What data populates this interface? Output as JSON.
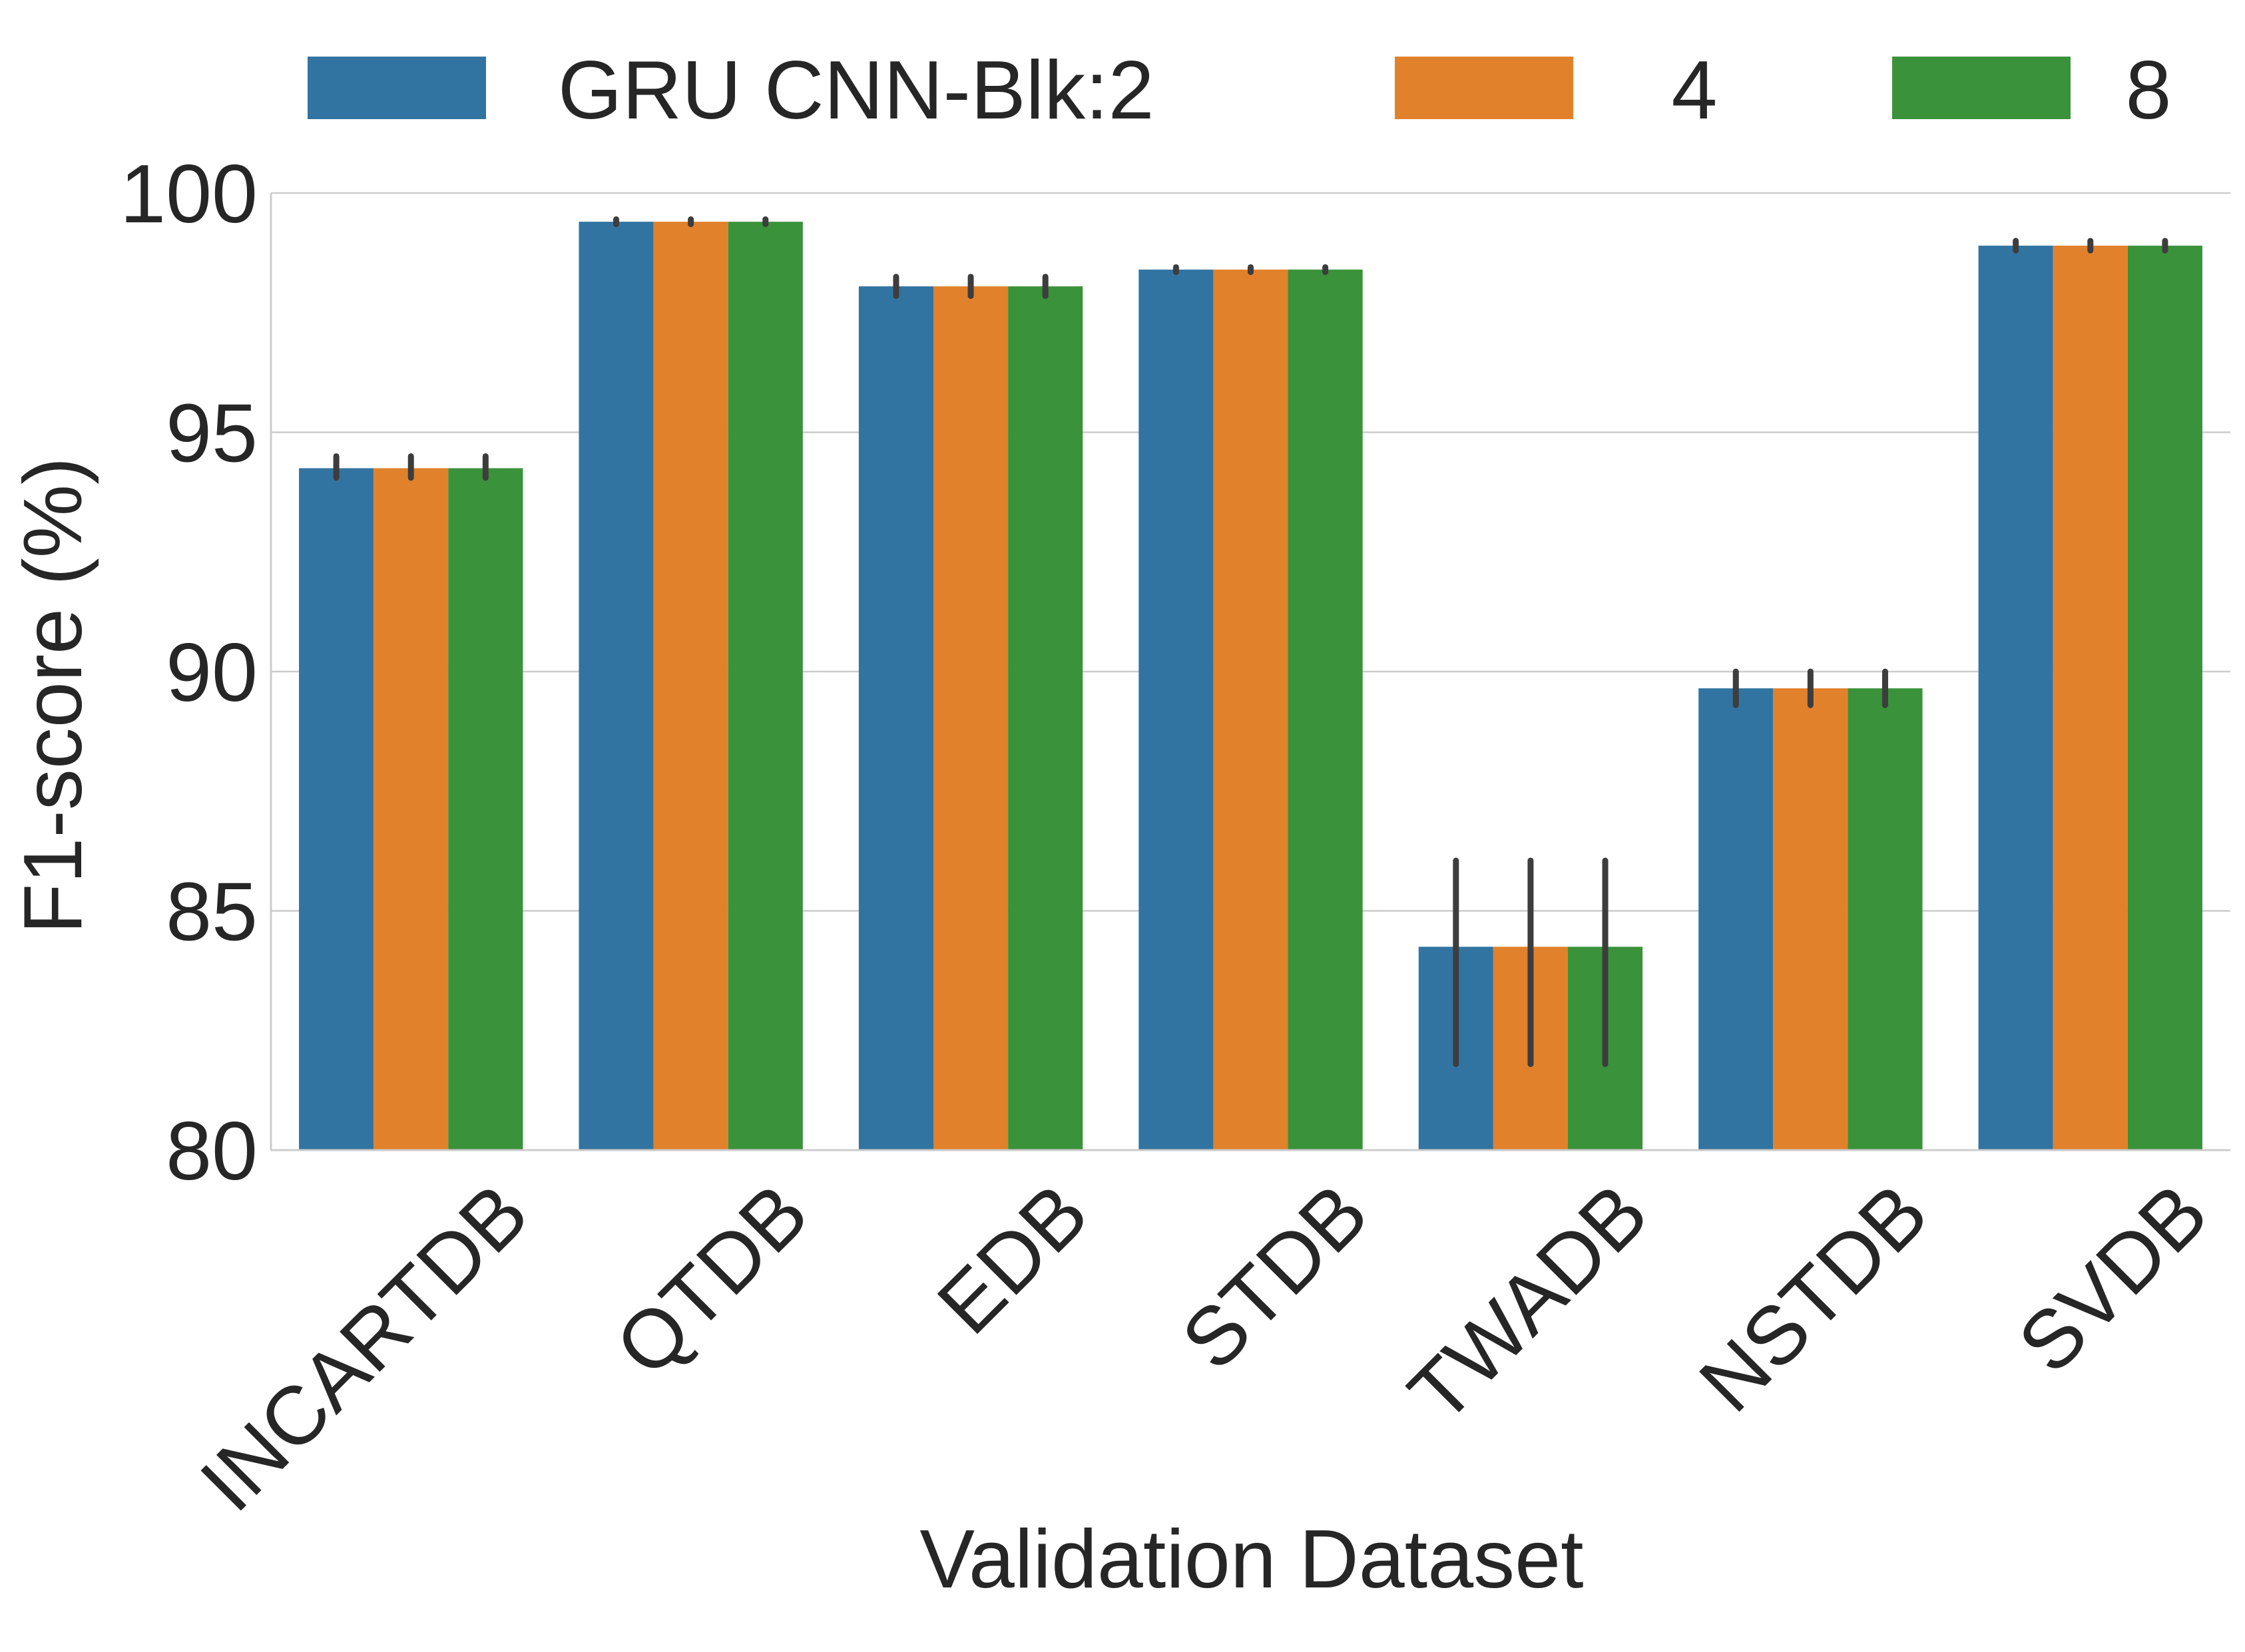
{
  "chart_data": {
    "type": "bar",
    "title": "",
    "xlabel": "Validation Dataset",
    "ylabel": "F1-score (%)",
    "ylim": [
      80,
      100
    ],
    "yticks": [
      80,
      85,
      90,
      95,
      100
    ],
    "grid": true,
    "legend_position": "top",
    "categories": [
      "INCARTDB",
      "QTDB",
      "EDB",
      "STDB",
      "TWADB",
      "NSTDB",
      "SVDB"
    ],
    "series": [
      {
        "name": "GRU CNN-Blk:2",
        "color": "#3274a1",
        "values": [
          94.25,
          99.4,
          98.05,
          98.4,
          84.25,
          89.65,
          98.9
        ],
        "err_low": [
          94.05,
          99.35,
          97.85,
          98.35,
          81.8,
          89.3,
          98.8
        ],
        "err_high": [
          94.5,
          99.45,
          98.25,
          98.45,
          86.05,
          90.0,
          99.0
        ]
      },
      {
        "name": "4",
        "color": "#e1812c",
        "values": [
          94.25,
          99.4,
          98.05,
          98.4,
          84.25,
          89.65,
          98.9
        ],
        "err_low": [
          94.05,
          99.35,
          97.85,
          98.35,
          81.8,
          89.3,
          98.8
        ],
        "err_high": [
          94.5,
          99.45,
          98.25,
          98.45,
          86.05,
          90.0,
          99.0
        ]
      },
      {
        "name": "8",
        "color": "#3a923a",
        "values": [
          94.25,
          99.4,
          98.05,
          98.4,
          84.25,
          89.65,
          98.9
        ],
        "err_low": [
          94.05,
          99.35,
          97.85,
          98.35,
          81.8,
          89.3,
          98.8
        ],
        "err_high": [
          94.5,
          99.45,
          98.25,
          98.45,
          86.05,
          90.0,
          99.0
        ]
      }
    ]
  }
}
